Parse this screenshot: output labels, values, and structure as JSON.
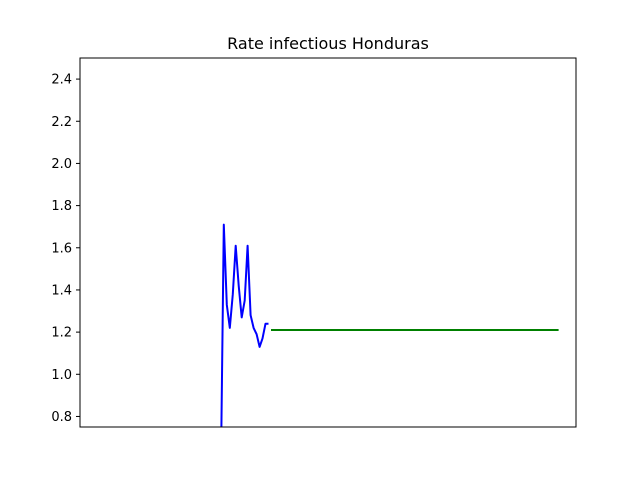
{
  "chart_data": {
    "type": "line",
    "title": "Rate infectious Honduras",
    "xlabel": "",
    "ylabel": "",
    "ylim": [
      0.75,
      2.5
    ],
    "xlim": [
      0,
      100
    ],
    "x_ticks_visible": false,
    "grid": false,
    "yticks": [
      0.8,
      1.0,
      1.2,
      1.4,
      1.6,
      1.8,
      2.0,
      2.2,
      2.4
    ],
    "ytick_labels": [
      "0.8",
      "1.0",
      "1.2",
      "1.4",
      "1.6",
      "1.8",
      "2.0",
      "2.2",
      "2.4"
    ],
    "series": [
      {
        "color": "#0000ff",
        "x": [
          28.5,
          29.0,
          29.6,
          30.2,
          30.8,
          31.4,
          32.0,
          32.6,
          33.2,
          33.8,
          34.4,
          35.0,
          35.6,
          36.2,
          36.8,
          37.4,
          38.0
        ],
        "y": [
          0.75,
          1.71,
          1.33,
          1.22,
          1.38,
          1.61,
          1.42,
          1.27,
          1.35,
          1.61,
          1.28,
          1.22,
          1.19,
          1.13,
          1.17,
          1.24,
          1.24
        ]
      },
      {
        "color": "#008000",
        "x": [
          38.5,
          96.5
        ],
        "y": [
          1.21,
          1.21
        ]
      }
    ]
  }
}
